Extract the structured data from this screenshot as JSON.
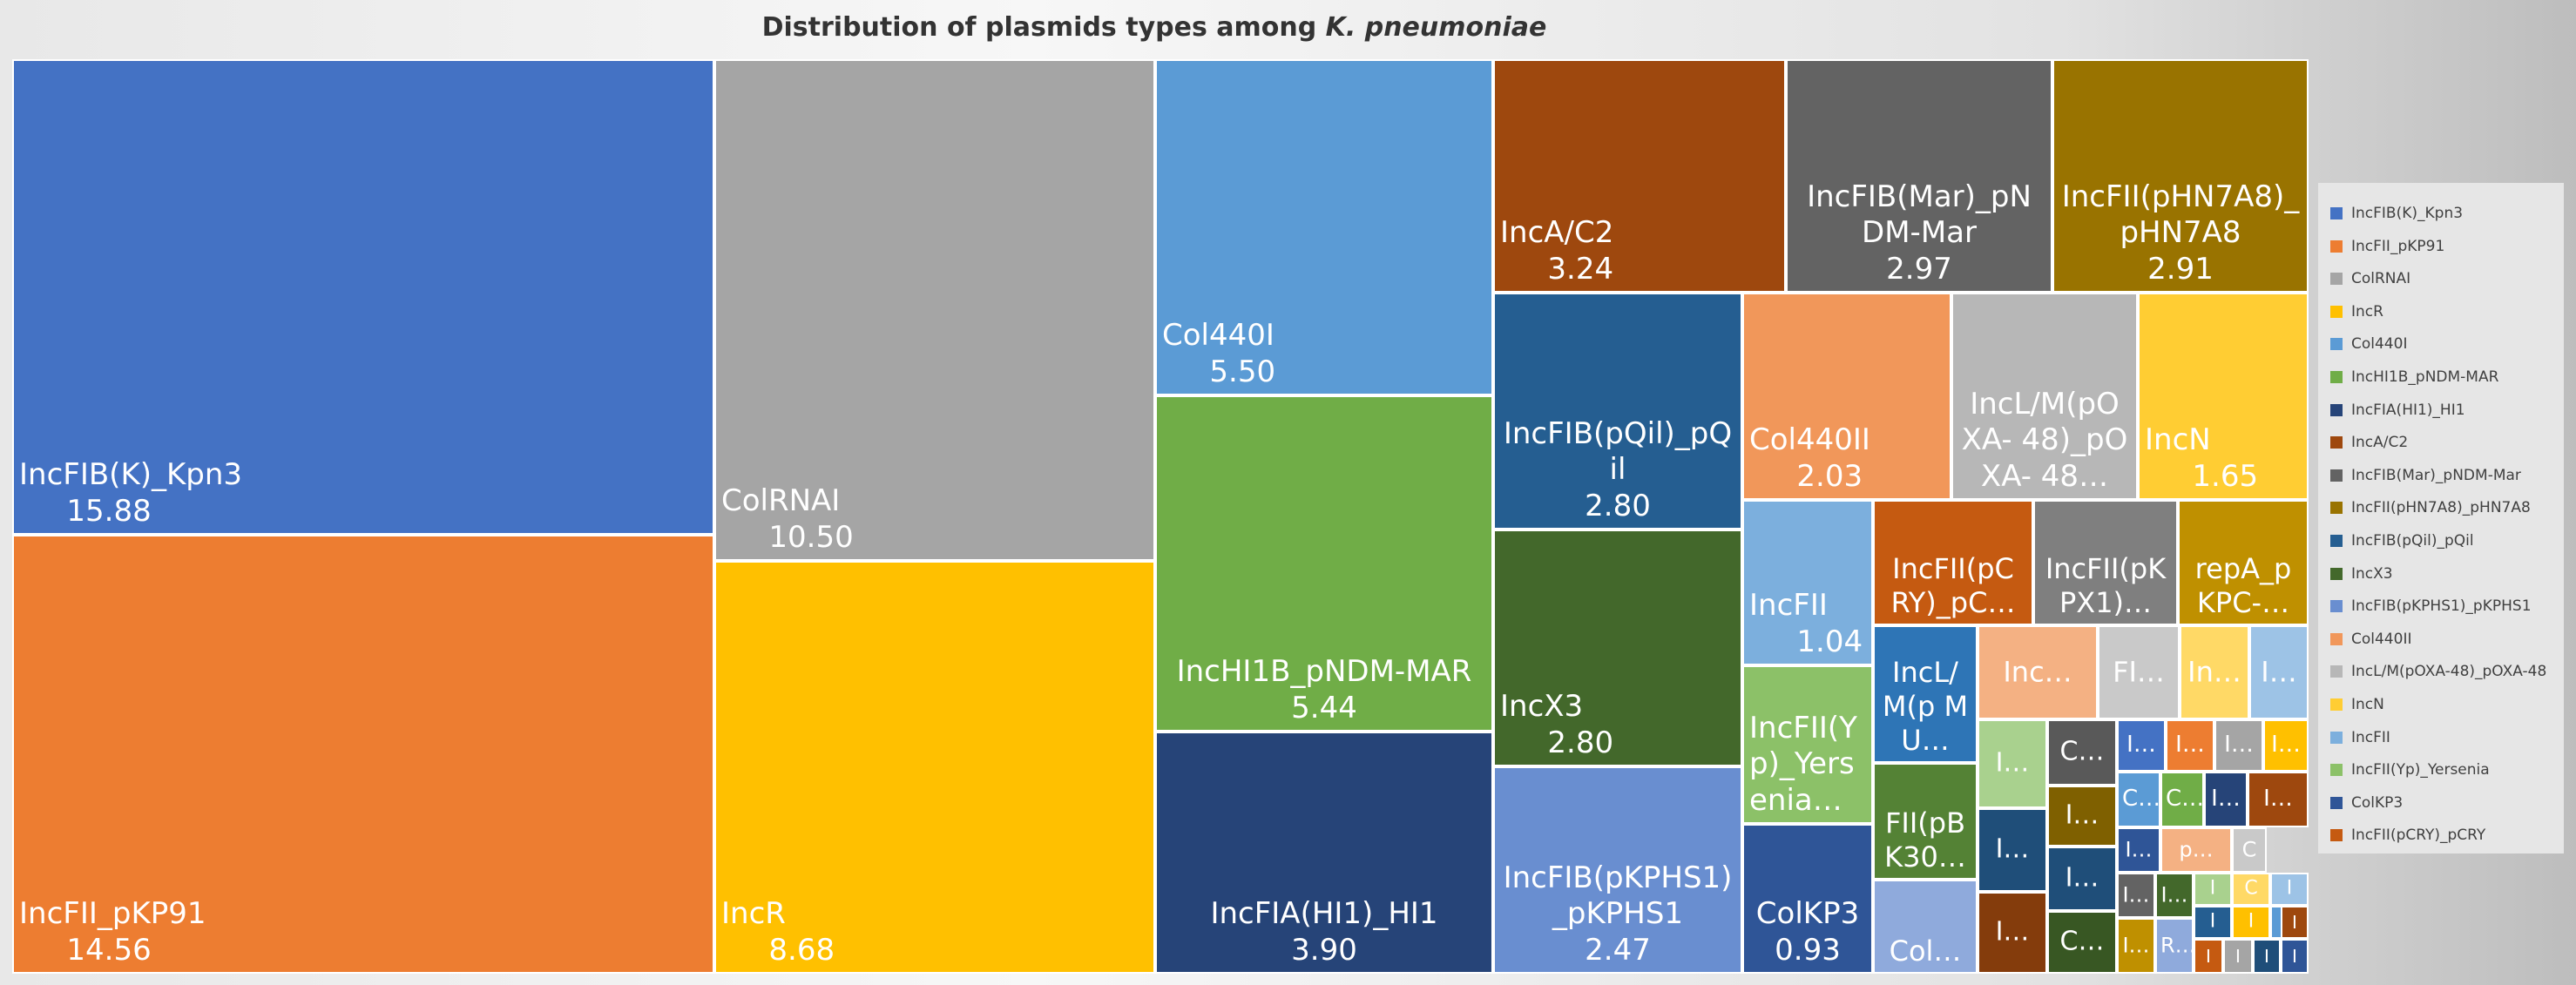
{
  "chart_data": {
    "type": "treemap",
    "title_prefix": "Distribution of plasmids types among ",
    "title_italic": "K. pneumoniae",
    "legend_position": "right",
    "series": [
      {
        "name": "IncFIB(K)_Kpn3",
        "value": 15.88,
        "label": "IncFIB(K)_Kpn3",
        "value_label": "15.88",
        "color": "#4472C4"
      },
      {
        "name": "IncFII_pKP91",
        "value": 14.56,
        "label": "IncFII_pKP91",
        "value_label": "14.56",
        "color": "#ED7D31"
      },
      {
        "name": "ColRNAI",
        "value": 10.5,
        "label": "ColRNAI",
        "value_label": "10.50",
        "color": "#A5A5A5"
      },
      {
        "name": "IncR",
        "value": 8.68,
        "label": "IncR",
        "value_label": "8.68",
        "color": "#FFC000"
      },
      {
        "name": "Col440I",
        "value": 5.5,
        "label": "Col440I",
        "value_label": "5.50",
        "color": "#5B9BD5"
      },
      {
        "name": "IncHI1B_pNDM-MAR",
        "value": 5.44,
        "label": "IncHI1B_pNDM-MAR",
        "value_label": "5.44",
        "color": "#70AD47"
      },
      {
        "name": "IncFIA(HI1)_HI1",
        "value": 3.9,
        "label": "IncFIA(HI1)_HI1",
        "value_label": "3.90",
        "color": "#264478"
      },
      {
        "name": "IncA/C2",
        "value": 3.24,
        "label": "IncA/C2",
        "value_label": "3.24",
        "color": "#9E480E"
      },
      {
        "name": "IncFIB(Mar)_pNDM-Mar",
        "value": 2.97,
        "label": "IncFIB(Mar)_pN DM-Mar",
        "value_label": "2.97",
        "color": "#636363"
      },
      {
        "name": "IncFII(pHN7A8)_pHN7A8",
        "value": 2.91,
        "label": "IncFII(pHN7A8)_ pHN7A8",
        "value_label": "2.91",
        "color": "#997300"
      },
      {
        "name": "IncFIB(pQil)_pQil",
        "value": 2.8,
        "label": "IncFIB(pQil)_pQ il",
        "value_label": "2.80",
        "color": "#255E91"
      },
      {
        "name": "IncX3",
        "value": 2.8,
        "label": "IncX3",
        "value_label": "2.80",
        "color": "#43682B"
      },
      {
        "name": "IncFIB(pKPHS1)_pKPHS1",
        "value": 2.47,
        "label": "IncFIB(pKPHS1) _pKPHS1",
        "value_label": "2.47",
        "color": "#698ED0"
      },
      {
        "name": "Col440II",
        "value": 2.03,
        "label": "Col440II",
        "value_label": "2.03",
        "color": "#F1975A"
      },
      {
        "name": "IncL/M(pOXA-48)_pOXA-48",
        "value": 1.9,
        "label": "IncL/M(pO XA- 48)_pOXA- 48…",
        "value_label": "",
        "color": "#B7B7B7"
      },
      {
        "name": "IncN",
        "value": 1.65,
        "label": "IncN",
        "value_label": "1.65",
        "color": "#FFCD33"
      },
      {
        "name": "IncFII",
        "value": 1.04,
        "label": "IncFII",
        "value_label": "1.04",
        "color": "#7CAFDD"
      },
      {
        "name": "IncFII(Yp)_Yersenia",
        "value": 1.0,
        "label": "IncFII(Y p)_Yers enia…",
        "value_label": "",
        "color": "#8CC168"
      },
      {
        "name": "ColKP3",
        "value": 0.93,
        "label": "ColKP3",
        "value_label": "0.93",
        "color": "#2F5597"
      },
      {
        "name": "IncFII(pCRY)_pCRY",
        "value": 0.8,
        "label": "IncFII(pC RY)_pC…",
        "value_label": "",
        "color": "#C55A11"
      }
    ],
    "unlegended_cells": [
      {
        "label": "IncFII(pK PX1)…",
        "color": "#7F7F7F"
      },
      {
        "label": "repA_p KPC-…",
        "color": "#BF9000"
      },
      {
        "label": "IncL/ M(p MU…",
        "color": "#2E75B6"
      },
      {
        "label": "FII(pB K30…",
        "color": "#548235"
      },
      {
        "label": "Col…",
        "color": "#8FAADC"
      },
      {
        "label": "Inc…",
        "color": "#F4B183"
      },
      {
        "label": "FI…",
        "color": "#C9C9C9"
      },
      {
        "label": "In…",
        "color": "#FFD966"
      },
      {
        "label": "I…",
        "color": "#9DC3E6"
      },
      {
        "label": "I…",
        "color": "#A9D18E"
      },
      {
        "label": "C…",
        "color": "#595959"
      },
      {
        "label": "I…",
        "color": "#1F4E79"
      },
      {
        "label": "I…",
        "color": "#7F6000"
      },
      {
        "label": "I…",
        "color": "#843C0C"
      },
      {
        "label": "I…",
        "color": "#1F4E79"
      },
      {
        "label": "C…",
        "color": "#385723"
      },
      {
        "label": "I…",
        "color": "#4472C4"
      },
      {
        "label": "I…",
        "color": "#ED7D31"
      },
      {
        "label": "I…",
        "color": "#A5A5A5"
      },
      {
        "label": "I…",
        "color": "#FFC000"
      },
      {
        "label": "C…",
        "color": "#5B9BD5"
      },
      {
        "label": "C…",
        "color": "#70AD47"
      },
      {
        "label": "I…",
        "color": "#264478"
      },
      {
        "label": "I…",
        "color": "#9E480E"
      },
      {
        "label": "I…",
        "color": "#2F5597"
      },
      {
        "label": "p…",
        "color": "#F4B183"
      },
      {
        "label": "C",
        "color": "#C9C9C9"
      },
      {
        "label": "I…",
        "color": "#636363"
      },
      {
        "label": "I…",
        "color": "#43682B"
      },
      {
        "label": "C",
        "color": "#FFD966"
      },
      {
        "label": "I",
        "color": "#9DC3E6"
      },
      {
        "label": "I",
        "color": "#A9D18E"
      },
      {
        "label": "I",
        "color": "#255E91"
      },
      {
        "label": "I",
        "color": "#FFC000"
      },
      {
        "label": "I",
        "color": "#5B9BD5"
      },
      {
        "label": "I…",
        "color": "#BF9000"
      },
      {
        "label": "R…",
        "color": "#8FAADC"
      },
      {
        "label": "I",
        "color": "#C55A11"
      },
      {
        "label": "I",
        "color": "#A5A5A5"
      },
      {
        "label": "I",
        "color": "#1F4E79"
      },
      {
        "label": "I",
        "color": "#2F5597"
      },
      {
        "label": "I",
        "color": "#9E480E"
      }
    ]
  }
}
